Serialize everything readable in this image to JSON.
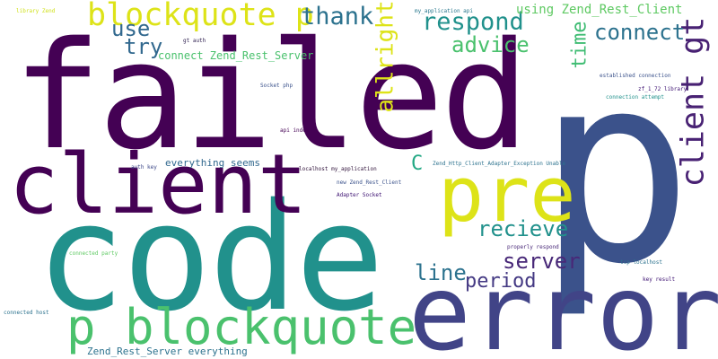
{
  "words": [
    {
      "text": "failed",
      "color": "#440154",
      "rotate": false
    },
    {
      "text": "p",
      "color": "#3b528b",
      "rotate": false
    },
    {
      "text": "code",
      "color": "#21918c",
      "rotate": false
    },
    {
      "text": "error",
      "color": "#414487",
      "rotate": false
    },
    {
      "text": "client",
      "color": "#440154",
      "rotate": false
    },
    {
      "text": "pre",
      "color": "#dde318",
      "rotate": false
    },
    {
      "text": "p blockquote",
      "color": "#4ac16d",
      "rotate": false
    },
    {
      "text": "blockquote p",
      "color": "#dde318",
      "rotate": false
    },
    {
      "text": "client gt",
      "color": "#482173",
      "rotate": true
    },
    {
      "text": "thank",
      "color": "#2c728e",
      "rotate": false
    },
    {
      "text": "respond",
      "color": "#21918c",
      "rotate": false
    },
    {
      "text": "connect",
      "color": "#2c728e",
      "rotate": false
    },
    {
      "text": "advice",
      "color": "#4ac16d",
      "rotate": false
    },
    {
      "text": "allright",
      "color": "#dde318",
      "rotate": true
    },
    {
      "text": "use",
      "color": "#31688e",
      "rotate": false
    },
    {
      "text": "try",
      "color": "#31688e",
      "rotate": false
    },
    {
      "text": "time",
      "color": "#3fbc73",
      "rotate": true
    },
    {
      "text": "recieve",
      "color": "#21918c",
      "rotate": false
    },
    {
      "text": "server",
      "color": "#482878",
      "rotate": false
    },
    {
      "text": "period",
      "color": "#443983",
      "rotate": false
    },
    {
      "text": "line",
      "color": "#2c728e",
      "rotate": false
    },
    {
      "text": "C",
      "color": "#22a884",
      "rotate": false
    },
    {
      "text": "using Zend_Rest_Client",
      "color": "#5ec962",
      "rotate": false
    },
    {
      "text": "connect Zend_Rest_Server",
      "color": "#4ac16d",
      "rotate": false
    },
    {
      "text": "everything seems",
      "color": "#31688e",
      "rotate": false
    },
    {
      "text": "Zend_Rest_Server everything",
      "color": "#2c728e",
      "rotate": false
    },
    {
      "text": "library Zend",
      "color": "#d0e11c",
      "rotate": false
    },
    {
      "text": "my_application api",
      "color": "#2a788e",
      "rotate": false
    },
    {
      "text": "gt auth",
      "color": "#2d1e4e",
      "rotate": false
    },
    {
      "text": "Socket php",
      "color": "#3b528b",
      "rotate": false
    },
    {
      "text": "established connection",
      "color": "#3b528b",
      "rotate": false
    },
    {
      "text": "zf_1_72 library",
      "color": "#3b0f70",
      "rotate": false
    },
    {
      "text": "connection attempt",
      "color": "#21918c",
      "rotate": false
    },
    {
      "text": "api index",
      "color": "#440154",
      "rotate": false
    },
    {
      "text": "auth key",
      "color": "#3e4989",
      "rotate": false
    },
    {
      "text": "localhost my_application",
      "color": "#30123b",
      "rotate": false
    },
    {
      "text": "Zend_Http_Client_Adapter_Exception Unable",
      "color": "#2c728e",
      "rotate": false
    },
    {
      "text": "new Zend_Rest_Client",
      "color": "#3b528b",
      "rotate": false
    },
    {
      "text": "Adapter Socket",
      "color": "#3b0f70",
      "rotate": false
    },
    {
      "text": "properly respond",
      "color": "#482878",
      "rotate": false
    },
    {
      "text": "connected party",
      "color": "#5ec962",
      "rotate": false
    },
    {
      "text": "tcp localhost",
      "color": "#2c728e",
      "rotate": false
    },
    {
      "text": "key result",
      "color": "#3b0f70",
      "rotate": false
    },
    {
      "text": "connected host",
      "color": "#2c728e",
      "rotate": false
    }
  ]
}
